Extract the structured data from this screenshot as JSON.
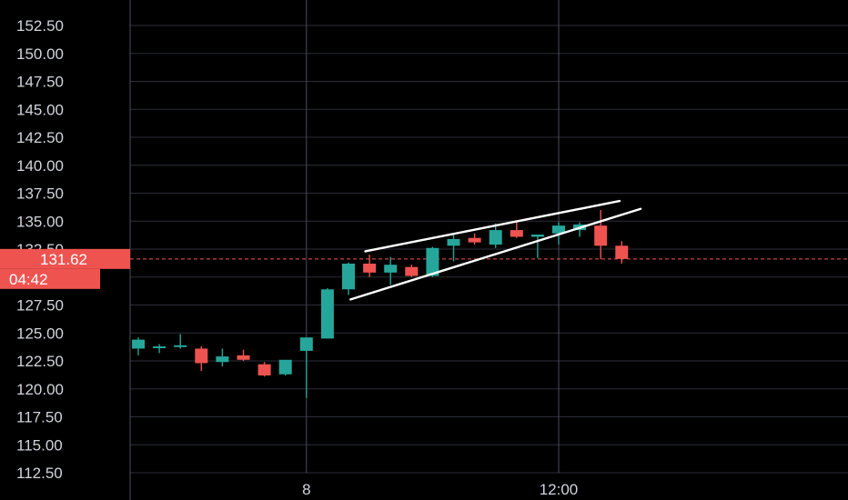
{
  "chart_data": {
    "type": "candlestick",
    "colors": {
      "background": "#000000",
      "up": "#26a69a",
      "down": "#ef5350",
      "grid": "#2a2e39",
      "text": "#d1d4dc",
      "trendline": "#ffffff"
    },
    "ylim": [
      112.5,
      152.5
    ],
    "y_ticks": [
      "152.50",
      "150.00",
      "147.50",
      "145.00",
      "142.50",
      "140.00",
      "137.50",
      "135.00",
      "132.50",
      "127.50",
      "125.00",
      "122.50",
      "120.00",
      "117.50",
      "115.00",
      "112.50"
    ],
    "x_ticks": [
      {
        "label": "8",
        "at": 8
      },
      {
        "label": "12:00",
        "at": 20
      }
    ],
    "current_price": {
      "label": "131.62",
      "value": 131.62
    },
    "countdown": "04:42",
    "candles": [
      {
        "i": 0,
        "open": 123.6,
        "high": 124.6,
        "low": 123.0,
        "close": 124.4
      },
      {
        "i": 1,
        "open": 123.8,
        "high": 124.0,
        "low": 123.2,
        "close": 123.8
      },
      {
        "i": 2,
        "open": 123.8,
        "high": 124.9,
        "low": 123.6,
        "close": 123.9
      },
      {
        "i": 3,
        "open": 123.6,
        "high": 123.8,
        "low": 121.6,
        "close": 122.3
      },
      {
        "i": 4,
        "open": 122.4,
        "high": 123.6,
        "low": 122.0,
        "close": 122.9
      },
      {
        "i": 5,
        "open": 123.0,
        "high": 123.5,
        "low": 122.5,
        "close": 122.6
      },
      {
        "i": 6,
        "open": 122.2,
        "high": 122.4,
        "low": 121.1,
        "close": 121.2
      },
      {
        "i": 7,
        "open": 121.3,
        "high": 122.5,
        "low": 121.2,
        "close": 122.6
      },
      {
        "i": 8,
        "open": 123.4,
        "high": 124.6,
        "low": 119.2,
        "close": 124.6
      },
      {
        "i": 9,
        "open": 124.5,
        "high": 129.0,
        "low": 124.5,
        "close": 128.9
      },
      {
        "i": 10,
        "open": 128.9,
        "high": 131.3,
        "low": 128.4,
        "close": 131.2
      },
      {
        "i": 11,
        "open": 131.2,
        "high": 132.0,
        "low": 130.0,
        "close": 130.4
      },
      {
        "i": 12,
        "open": 130.4,
        "high": 131.8,
        "low": 129.3,
        "close": 131.1
      },
      {
        "i": 13,
        "open": 130.9,
        "high": 131.1,
        "low": 130.0,
        "close": 130.1
      },
      {
        "i": 14,
        "open": 130.1,
        "high": 132.7,
        "low": 130.0,
        "close": 132.6
      },
      {
        "i": 15,
        "open": 132.8,
        "high": 133.9,
        "low": 131.4,
        "close": 133.4
      },
      {
        "i": 16,
        "open": 133.5,
        "high": 133.9,
        "low": 132.9,
        "close": 133.1
      },
      {
        "i": 17,
        "open": 132.9,
        "high": 134.8,
        "low": 132.6,
        "close": 134.2
      },
      {
        "i": 18,
        "open": 134.2,
        "high": 134.9,
        "low": 133.5,
        "close": 133.6
      },
      {
        "i": 19,
        "open": 133.6,
        "high": 133.8,
        "low": 131.7,
        "close": 133.8
      },
      {
        "i": 20,
        "open": 133.9,
        "high": 134.9,
        "low": 132.9,
        "close": 134.6
      },
      {
        "i": 21,
        "open": 134.2,
        "high": 134.9,
        "low": 133.6,
        "close": 134.7
      },
      {
        "i": 22,
        "open": 134.6,
        "high": 136.0,
        "low": 131.6,
        "close": 132.8
      },
      {
        "i": 23,
        "open": 132.8,
        "high": 133.2,
        "low": 131.2,
        "close": 131.62
      }
    ],
    "trendlines": [
      {
        "x1": 10.8,
        "y1": 132.3,
        "x2": 22.9,
        "y2": 136.8
      },
      {
        "x1": 10.1,
        "y1": 128.0,
        "x2": 23.9,
        "y2": 136.1
      }
    ],
    "grid": true
  }
}
